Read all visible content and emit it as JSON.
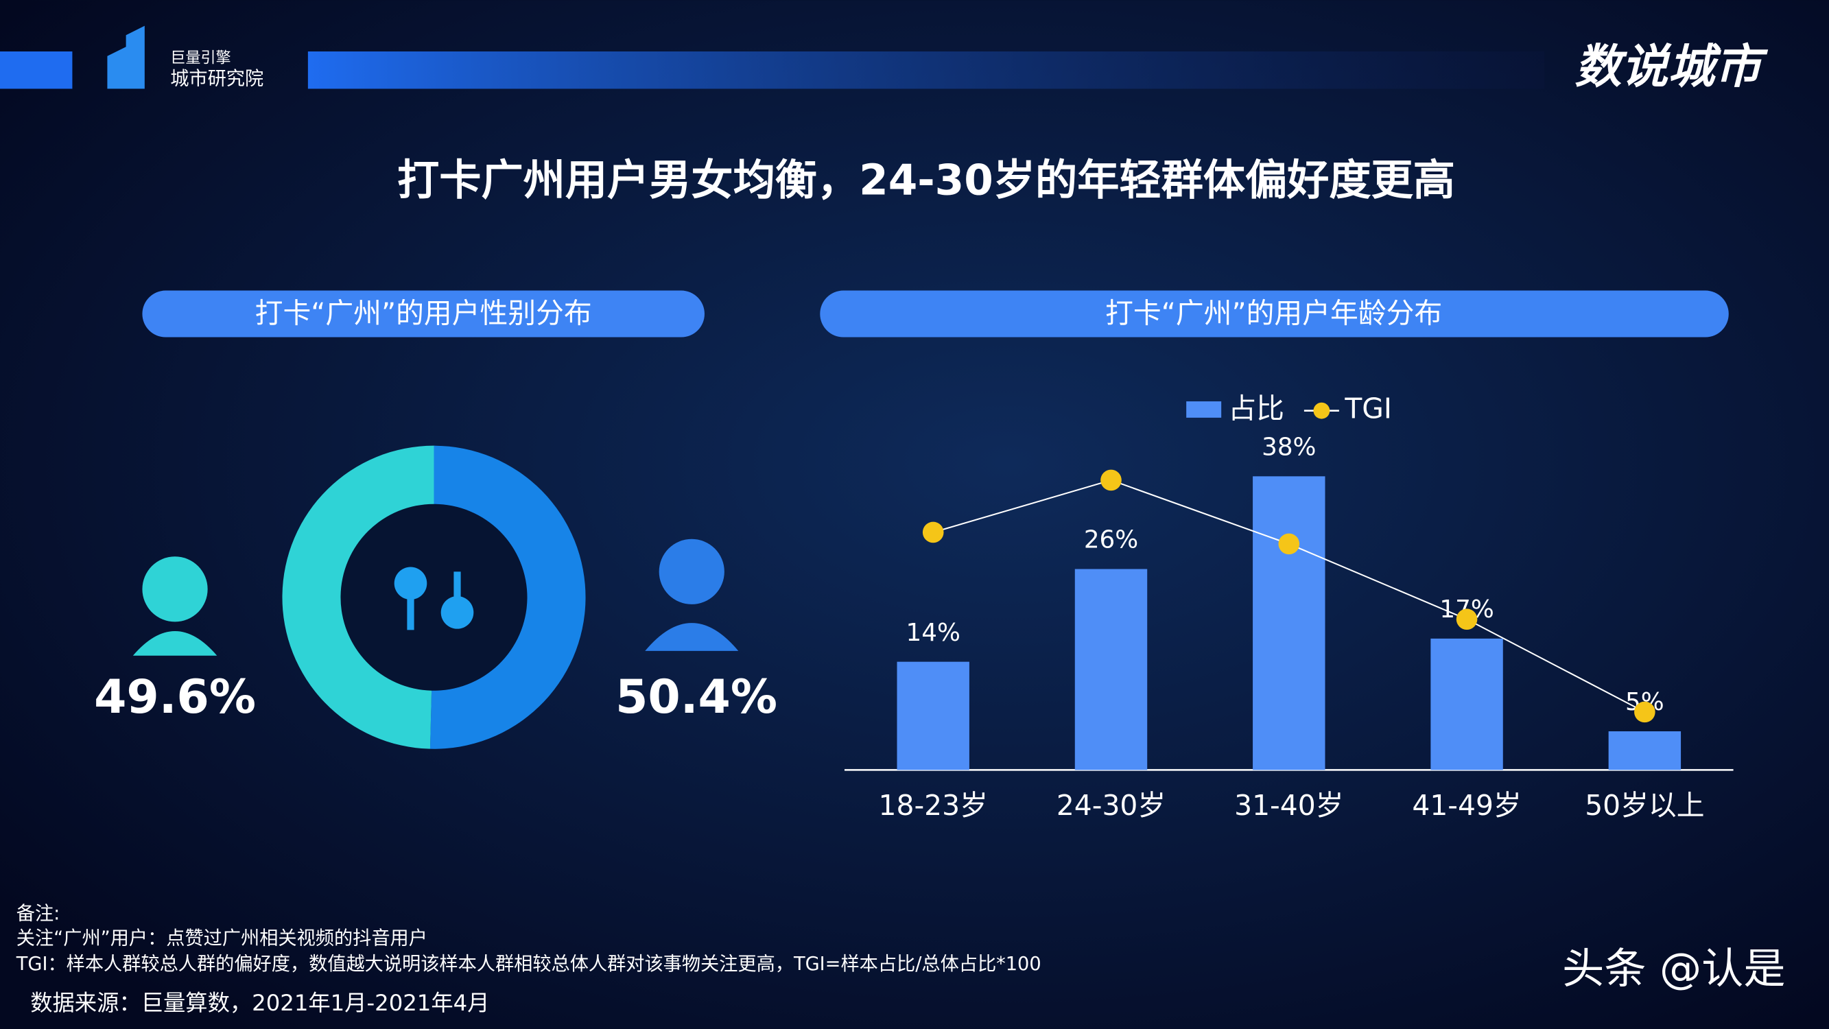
{
  "header": {
    "logo_top": "巨量引擎",
    "logo_bottom": "城市研究院",
    "brand": "数说城市"
  },
  "title": "打卡广州用户男女均衡，24-30岁的年轻群体偏好度更高",
  "notes": [
    "备注:",
    "关注“广州”用户：点赞过广州相关视频的抖音用户",
    "TGI：样本人群较总人群的偏好度，数值越大说明该样本人群相较总体人群对该事物关注更高，TGI=样本占比/总体占比*100"
  ],
  "source": "数据来源：巨量算数，2021年1月-2021年4月",
  "watermark": "头条 @认是",
  "chart_data": [
    {
      "type": "pie",
      "title": "打卡“广州”的用户性别分布",
      "categories": [
        "女",
        "男"
      ],
      "values": [
        49.6,
        50.4
      ],
      "value_labels": [
        "49.6%",
        "50.4%"
      ],
      "colors": [
        "#2fd3d6",
        "#1784e8"
      ]
    },
    {
      "type": "bar",
      "title": "打卡“广州”的用户年龄分布",
      "categories": [
        "18-23岁",
        "24-30岁",
        "31-40岁",
        "41-49岁",
        "50岁以上"
      ],
      "ylim": [
        0,
        40
      ],
      "y2lim": [
        0,
        160
      ],
      "series": [
        {
          "name": "占比",
          "type": "bar",
          "color": "#4f8ef7",
          "values": [
            14,
            26,
            38,
            17,
            5
          ],
          "value_labels": [
            "14%",
            "26%",
            "38%",
            "17%",
            "5%"
          ]
        },
        {
          "name": "TGI",
          "type": "line",
          "axis": "y2",
          "color": "#f5c518",
          "values": [
            123,
            150,
            117,
            78,
            30
          ]
        }
      ]
    }
  ]
}
